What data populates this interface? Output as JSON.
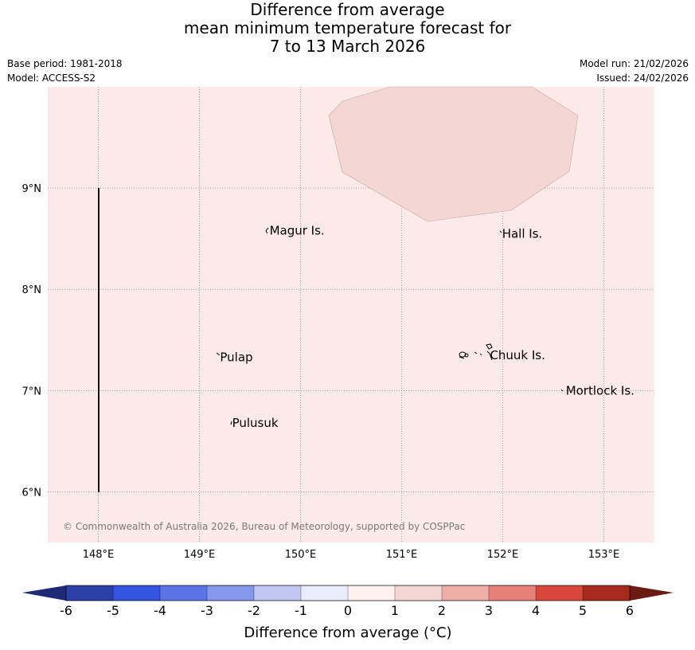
{
  "title": {
    "line1": "Difference from average",
    "line2": "mean minimum temperature forecast for",
    "line3": "7 to 13 March 2026"
  },
  "meta": {
    "base_period": "Base period: 1981-2018",
    "model": "Model: ACCESS-S2",
    "model_run": "Model run: 21/02/2026",
    "issued": "Issued: 24/02/2026"
  },
  "map": {
    "lon_range": [
      147.5,
      153.5
    ],
    "lat_range": [
      5.5,
      10.0
    ],
    "lon_ticks": [
      148,
      149,
      150,
      151,
      152,
      153
    ],
    "lon_labels": [
      "148°E",
      "149°E",
      "150°E",
      "151°E",
      "152°E",
      "153°E"
    ],
    "lat_ticks": [
      6,
      7,
      8,
      9
    ],
    "lat_labels": [
      "6°N",
      "7°N",
      "8°N",
      "9°N"
    ],
    "background_anomaly_class": "0 to 1",
    "background_color": "#fbeae8",
    "patch_anomaly_class": "1 to 2",
    "patch_color": "#f4d6d2",
    "places": [
      {
        "name": "Magur Is.",
        "lon": 149.67,
        "lat": 8.58
      },
      {
        "name": "Hall Is.",
        "lon": 151.97,
        "lat": 8.55
      },
      {
        "name": "Pulap",
        "lon": 149.18,
        "lat": 7.33
      },
      {
        "name": "Chuuk Is.",
        "lon": 151.85,
        "lat": 7.35
      },
      {
        "name": "Mortlock Is.",
        "lon": 152.6,
        "lat": 7.0
      },
      {
        "name": "Pulusuk",
        "lon": 149.3,
        "lat": 6.68
      }
    ],
    "copyright": "© Commonwealth of Australia 2026, Bureau of Meteorology, supported by COSPPac"
  },
  "colorbar": {
    "title": "Difference from average (°C)",
    "tick_labels": [
      "-6",
      "-5",
      "-4",
      "-3",
      "-2",
      "-1",
      "0",
      "1",
      "2",
      "3",
      "4",
      "5",
      "6"
    ],
    "colors": [
      "#2b3fa8",
      "#3352e0",
      "#5b73e6",
      "#8597ea",
      "#c0c8f2",
      "#e9ecfa",
      "#fdf2f0",
      "#f4d6d2",
      "#eeada6",
      "#e8807a",
      "#d9473c",
      "#a8291f"
    ],
    "low_extend_color": "#1e2a78",
    "high_extend_color": "#6e1a14"
  }
}
